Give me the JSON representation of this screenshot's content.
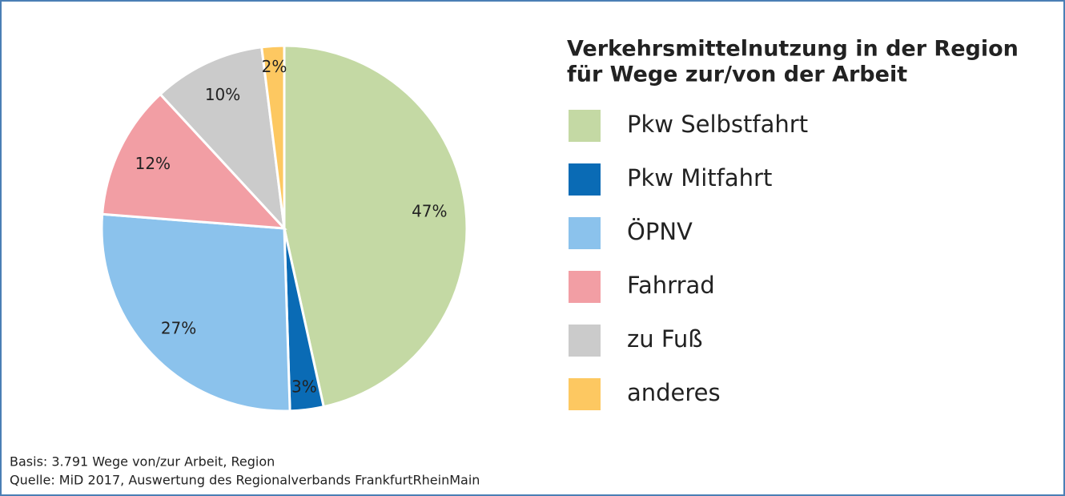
{
  "chart_data": {
    "type": "pie",
    "title": [
      "Verkehrsmittelnutzung in der Region",
      "für Wege zur/von der Arbeit"
    ],
    "categories": [
      "Pkw Selbstfahrt",
      "Pkw Mitfahrt",
      "ÖPNV",
      "Fahrrad",
      "zu Fuß",
      "anderes"
    ],
    "values": [
      47,
      3,
      27,
      12,
      10,
      2
    ],
    "value_labels": [
      "47%",
      "3%",
      "27%",
      "12%",
      "10%",
      "2%"
    ],
    "colors": [
      "#c4d9a4",
      "#0a6bb5",
      "#8bc2ec",
      "#f29ea4",
      "#cbcbcb",
      "#fdc861"
    ],
    "notes": [
      "Basis: 3.791 Wege von/zur Arbeit, Region",
      "Quelle: MiD 2017, Auswertung des Regionalverbands FrankfurtRheinMain"
    ]
  }
}
